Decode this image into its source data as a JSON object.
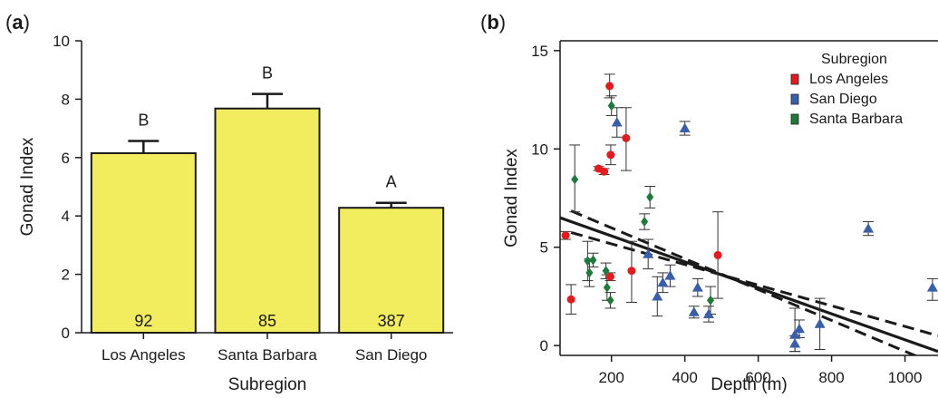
{
  "figure": {
    "panel_a": {
      "open": "(",
      "letter": "a",
      "close": ")"
    },
    "panel_b": {
      "open": "(",
      "letter": "b",
      "close": ")"
    }
  },
  "chart_data": [
    {
      "type": "bar",
      "panel": "a",
      "categories": [
        "Los Angeles",
        "Santa Barbara",
        "San Diego"
      ],
      "values": [
        6.15,
        7.68,
        4.28
      ],
      "errors": [
        0.42,
        0.5,
        0.17
      ],
      "significance_labels": [
        "B",
        "B",
        "A"
      ],
      "sample_sizes": [
        "92",
        "85",
        "387"
      ],
      "xlabel": "Subregion",
      "ylabel": "Gonad Index",
      "ylim": [
        0,
        10
      ],
      "yticks": [
        0,
        2,
        4,
        6,
        8,
        10
      ],
      "bar_color": "#f2ec5f",
      "grid": false
    },
    {
      "type": "scatter",
      "panel": "b",
      "xlabel": "Depth (m)",
      "ylabel": "Gonad Index",
      "xlim": [
        60,
        1090
      ],
      "ylim": [
        -0.5,
        15.5
      ],
      "xticks": [
        200,
        400,
        600,
        800,
        1000
      ],
      "yticks": [
        0,
        5,
        10,
        15
      ],
      "grid": false,
      "legend": {
        "title": "Subregion",
        "position": "top-right"
      },
      "series": [
        {
          "name": "Los Angeles",
          "color": "#e41a1c",
          "marker": "circle",
          "points": [
            {
              "x": 75,
              "y": 5.6,
              "lo": 5.4,
              "hi": 5.8
            },
            {
              "x": 90,
              "y": 2.35,
              "lo": 1.6,
              "hi": 3.1
            },
            {
              "x": 165,
              "y": 9.0,
              "lo": 8.9,
              "hi": 9.1
            },
            {
              "x": 180,
              "y": 8.85,
              "lo": 8.7,
              "hi": 9.0
            },
            {
              "x": 195,
              "y": 13.2,
              "lo": 12.6,
              "hi": 13.8
            },
            {
              "x": 198,
              "y": 9.7,
              "lo": 9.2,
              "hi": 10.2
            },
            {
              "x": 197,
              "y": 3.5,
              "lo": 3.3,
              "hi": 3.7
            },
            {
              "x": 240,
              "y": 10.55,
              "lo": 8.9,
              "hi": 12.1
            },
            {
              "x": 255,
              "y": 3.8,
              "lo": 2.2,
              "hi": 5.3
            },
            {
              "x": 490,
              "y": 4.6,
              "lo": 2.4,
              "hi": 6.8
            }
          ]
        },
        {
          "name": "San Diego",
          "color": "#3a5faa",
          "marker": "triangle",
          "points": [
            {
              "x": 215,
              "y": 11.35,
              "lo": 10.6,
              "hi": 12.1
            },
            {
              "x": 300,
              "y": 4.65,
              "lo": 3.9,
              "hi": 5.4
            },
            {
              "x": 325,
              "y": 2.5,
              "lo": 1.5,
              "hi": 3.5
            },
            {
              "x": 340,
              "y": 3.2,
              "lo": 2.7,
              "hi": 3.7
            },
            {
              "x": 360,
              "y": 3.55,
              "lo": 3.0,
              "hi": 4.1
            },
            {
              "x": 400,
              "y": 11.05,
              "lo": 10.7,
              "hi": 11.4
            },
            {
              "x": 425,
              "y": 1.7,
              "lo": 1.4,
              "hi": 2.0
            },
            {
              "x": 435,
              "y": 2.95,
              "lo": 2.5,
              "hi": 3.4
            },
            {
              "x": 465,
              "y": 1.6,
              "lo": 1.2,
              "hi": 2.0
            },
            {
              "x": 700,
              "y": 0.55,
              "lo": -0.3,
              "hi": 1.9
            },
            {
              "x": 712,
              "y": 0.85,
              "lo": 0.4,
              "hi": 1.3
            },
            {
              "x": 700,
              "y": 0.1,
              "lo": -0.3,
              "hi": 0.5
            },
            {
              "x": 768,
              "y": 1.1,
              "lo": -0.2,
              "hi": 2.4
            },
            {
              "x": 900,
              "y": 5.95,
              "lo": 5.6,
              "hi": 6.3
            },
            {
              "x": 1075,
              "y": 2.95,
              "lo": 2.3,
              "hi": 3.4
            }
          ]
        },
        {
          "name": "Santa Barbara",
          "color": "#1e7a3a",
          "marker": "diamond",
          "points": [
            {
              "x": 100,
              "y": 8.45,
              "lo": 6.8,
              "hi": 10.2
            },
            {
              "x": 135,
              "y": 4.3,
              "lo": 3.3,
              "hi": 5.3
            },
            {
              "x": 140,
              "y": 3.7,
              "lo": 3.0,
              "hi": 4.4
            },
            {
              "x": 150,
              "y": 4.35,
              "lo": 4.0,
              "hi": 4.7
            },
            {
              "x": 185,
              "y": 3.8,
              "lo": 3.4,
              "hi": 4.2
            },
            {
              "x": 188,
              "y": 2.95,
              "lo": 2.3,
              "hi": 3.6
            },
            {
              "x": 197,
              "y": 2.3,
              "lo": 1.9,
              "hi": 2.7
            },
            {
              "x": 200,
              "y": 12.2,
              "lo": 11.7,
              "hi": 12.7
            },
            {
              "x": 290,
              "y": 6.3,
              "lo": 5.9,
              "hi": 6.7
            },
            {
              "x": 305,
              "y": 7.55,
              "lo": 7.0,
              "hi": 8.1
            },
            {
              "x": 470,
              "y": 2.3,
              "lo": 1.6,
              "hi": 3.0
            }
          ]
        }
      ],
      "fit_lines": [
        {
          "style": "solid",
          "x": [
            60,
            1090
          ],
          "y": [
            6.5,
            -0.3
          ]
        },
        {
          "style": "dashed",
          "x": [
            90,
            1090
          ],
          "y": [
            6.85,
            -1.0
          ]
        },
        {
          "style": "dashed",
          "x": [
            90,
            1090
          ],
          "y": [
            5.75,
            0.5
          ]
        }
      ]
    }
  ]
}
